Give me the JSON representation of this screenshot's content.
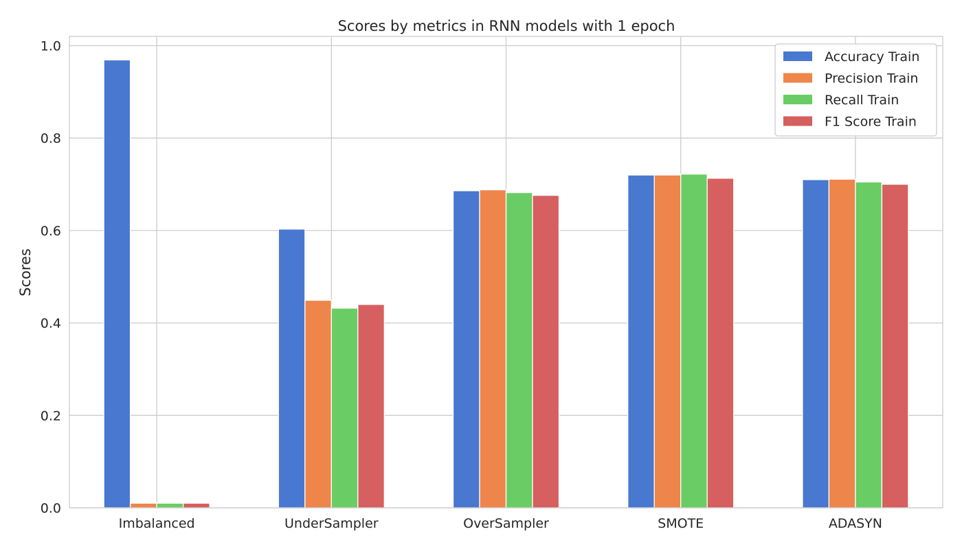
{
  "chart_data": {
    "type": "bar",
    "title": "Scores by metrics in RNN models with 1 epoch",
    "xlabel": "",
    "ylabel": "Scores",
    "categories": [
      "Imbalanced",
      "UnderSampler",
      "OverSampler",
      "SMOTE",
      "ADASYN"
    ],
    "series": [
      {
        "name": "Accuracy Train",
        "color": "#4878d0",
        "values": [
          0.969,
          0.603,
          0.686,
          0.72,
          0.71
        ]
      },
      {
        "name": "Precision Train",
        "color": "#ee854a",
        "values": [
          0.01,
          0.449,
          0.688,
          0.72,
          0.711
        ]
      },
      {
        "name": "Recall Train",
        "color": "#6acc64",
        "values": [
          0.01,
          0.432,
          0.682,
          0.722,
          0.705
        ]
      },
      {
        "name": "F1 Score Train",
        "color": "#d65f5f",
        "values": [
          0.01,
          0.44,
          0.676,
          0.713,
          0.7
        ]
      }
    ],
    "ylim": [
      0,
      1.02
    ],
    "yticks": [
      0.0,
      0.2,
      0.4,
      0.6,
      0.8,
      1.0
    ],
    "ytick_labels": [
      "0.0",
      "0.2",
      "0.4",
      "0.6",
      "0.8",
      "1.0"
    ],
    "grid": true,
    "legend_position": "top-right"
  }
}
